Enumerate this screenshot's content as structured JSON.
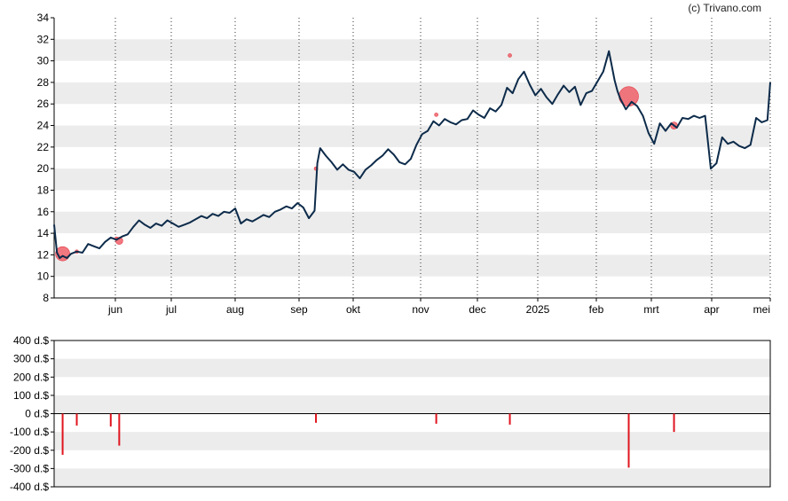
{
  "copyright": "(c) Trivano.com",
  "chart_data": [
    {
      "type": "line",
      "title": "",
      "xlabel": "",
      "ylabel": "",
      "ylim": [
        8,
        34
      ],
      "y_ticks": [
        "8",
        "10",
        "12",
        "14",
        "16",
        "18",
        "20",
        "22",
        "24",
        "26",
        "28",
        "30",
        "32",
        "34"
      ],
      "x_ticks": [
        "jun",
        "jul",
        "aug",
        "sep",
        "okt",
        "nov",
        "dec",
        "2025",
        "feb",
        "mrt",
        "apr",
        "mei"
      ],
      "grid": "alternating horizontal bands, dotted vertical lines at month starts",
      "line_color": "#0d2b4a",
      "series": [
        {
          "values": [
            [
              0.0,
              14.8
            ],
            [
              1.0,
              12.2
            ],
            [
              2.0,
              11.7
            ],
            [
              3.0,
              11.9
            ],
            [
              4.5,
              11.7
            ],
            [
              6.0,
              12.1
            ],
            [
              8.0,
              12.3
            ],
            [
              10.0,
              12.2
            ],
            [
              12.0,
              13.0
            ],
            [
              14.0,
              12.8
            ],
            [
              16.0,
              12.6
            ],
            [
              18.0,
              13.2
            ],
            [
              20.0,
              13.6
            ],
            [
              22.0,
              13.4
            ],
            [
              24.0,
              13.7
            ],
            [
              26.0,
              13.9
            ],
            [
              28.0,
              14.6
            ],
            [
              30.0,
              15.2
            ],
            [
              32.0,
              14.8
            ],
            [
              34.0,
              14.5
            ],
            [
              36.0,
              14.9
            ],
            [
              38.0,
              14.7
            ],
            [
              40.0,
              15.2
            ],
            [
              42.0,
              14.9
            ],
            [
              44.0,
              14.6
            ],
            [
              46.0,
              14.8
            ],
            [
              48.0,
              15.0
            ],
            [
              50.0,
              15.3
            ],
            [
              52.0,
              15.6
            ],
            [
              54.0,
              15.4
            ],
            [
              56.0,
              15.8
            ],
            [
              58.0,
              15.6
            ],
            [
              60.0,
              16.0
            ],
            [
              62.0,
              15.9
            ],
            [
              64.0,
              16.3
            ],
            [
              66.0,
              14.9
            ],
            [
              68.0,
              15.3
            ],
            [
              70.0,
              15.1
            ],
            [
              72.0,
              15.4
            ],
            [
              74.0,
              15.7
            ],
            [
              76.0,
              15.5
            ],
            [
              78.0,
              16.0
            ],
            [
              80.0,
              16.2
            ],
            [
              82.0,
              16.5
            ],
            [
              84.0,
              16.3
            ],
            [
              86.0,
              16.8
            ],
            [
              88.0,
              16.4
            ],
            [
              90.0,
              15.4
            ],
            [
              92.0,
              16.1
            ],
            [
              93.0,
              20.5
            ],
            [
              94.0,
              21.9
            ],
            [
              96.0,
              21.2
            ],
            [
              98.0,
              20.6
            ],
            [
              100.0,
              19.9
            ],
            [
              102.0,
              20.4
            ],
            [
              104.0,
              19.9
            ],
            [
              106.0,
              19.7
            ],
            [
              108.0,
              19.1
            ],
            [
              110.0,
              19.9
            ],
            [
              112.0,
              20.3
            ],
            [
              114.0,
              20.8
            ],
            [
              116.0,
              21.2
            ],
            [
              118.0,
              21.8
            ],
            [
              120.0,
              21.3
            ],
            [
              122.0,
              20.6
            ],
            [
              124.0,
              20.4
            ],
            [
              126.0,
              20.9
            ],
            [
              128.0,
              22.2
            ],
            [
              130.0,
              23.2
            ],
            [
              132.0,
              23.5
            ],
            [
              134.0,
              24.4
            ],
            [
              136.0,
              24.0
            ],
            [
              138.0,
              24.6
            ],
            [
              140.0,
              24.3
            ],
            [
              142.0,
              24.1
            ],
            [
              144.0,
              24.5
            ],
            [
              146.0,
              24.6
            ],
            [
              148.0,
              25.4
            ],
            [
              150.0,
              25.0
            ],
            [
              152.0,
              24.7
            ],
            [
              154.0,
              25.6
            ],
            [
              156.0,
              25.3
            ],
            [
              158.0,
              25.9
            ],
            [
              160.0,
              27.5
            ],
            [
              162.0,
              27.0
            ],
            [
              164.0,
              28.3
            ],
            [
              166.0,
              29.0
            ],
            [
              168.0,
              27.8
            ],
            [
              170.0,
              26.8
            ],
            [
              172.0,
              27.4
            ],
            [
              174.0,
              26.6
            ],
            [
              176.0,
              26.0
            ],
            [
              178.0,
              26.9
            ],
            [
              180.0,
              27.7
            ],
            [
              182.0,
              27.1
            ],
            [
              184.0,
              27.6
            ],
            [
              186.0,
              25.9
            ],
            [
              188.0,
              27.0
            ],
            [
              190.0,
              27.2
            ],
            [
              192.0,
              28.1
            ],
            [
              194.0,
              29.0
            ],
            [
              196.0,
              30.9
            ],
            [
              198.0,
              28.2
            ],
            [
              199.0,
              27.2
            ],
            [
              200.0,
              26.5
            ],
            [
              202.0,
              25.5
            ],
            [
              204.0,
              26.2
            ],
            [
              206.0,
              25.8
            ],
            [
              208.0,
              24.9
            ],
            [
              210.0,
              23.3
            ],
            [
              212.0,
              22.3
            ],
            [
              214.0,
              24.2
            ],
            [
              216.0,
              23.5
            ],
            [
              218.0,
              24.2
            ],
            [
              220.0,
              23.8
            ],
            [
              222.0,
              24.7
            ],
            [
              224.0,
              24.6
            ],
            [
              226.0,
              24.9
            ],
            [
              228.0,
              24.7
            ],
            [
              230.0,
              24.9
            ],
            [
              232.0,
              20.0
            ],
            [
              234.0,
              20.5
            ],
            [
              236.0,
              22.9
            ],
            [
              238.0,
              22.3
            ],
            [
              240.0,
              22.5
            ],
            [
              242.0,
              22.1
            ],
            [
              244.0,
              21.9
            ],
            [
              246.0,
              22.2
            ],
            [
              248.0,
              24.7
            ],
            [
              250.0,
              24.3
            ],
            [
              252.0,
              24.5
            ],
            [
              253.0,
              28.0
            ]
          ]
        }
      ],
      "markers": [
        {
          "x": 3.0,
          "y": 12.1,
          "size": 3
        },
        {
          "x": 8.0,
          "y": 12.3,
          "size": 1
        },
        {
          "x": 22.0,
          "y": 13.5,
          "size": 1
        },
        {
          "x": 23.0,
          "y": 13.3,
          "size": 2
        },
        {
          "x": 92.5,
          "y": 20.0,
          "size": 1
        },
        {
          "x": 135.0,
          "y": 25.0,
          "size": 1
        },
        {
          "x": 161.0,
          "y": 30.5,
          "size": 1
        },
        {
          "x": 203.0,
          "y": 26.7,
          "size": 4
        },
        {
          "x": 219.0,
          "y": 24.0,
          "size": 2
        }
      ],
      "marker_color": "#f0606a"
    },
    {
      "type": "bar",
      "title": "",
      "xlabel": "",
      "ylabel": "",
      "ylim": [
        -400,
        400
      ],
      "y_ticks": [
        "400 d.$",
        "300 d.$",
        "200 d.$",
        "100 d.$",
        "0 d.$",
        "-100 d.$",
        "-200 d.$",
        "-300 d.$",
        "-400 d.$"
      ],
      "bar_color": "#e0141e",
      "series": [
        {
          "values": [
            [
              3.0,
              -225
            ],
            [
              8.0,
              -65
            ],
            [
              20.0,
              -70
            ],
            [
              23.0,
              -175
            ],
            [
              92.5,
              -50
            ],
            [
              135.0,
              -55
            ],
            [
              161.0,
              -60
            ],
            [
              203.0,
              -295
            ],
            [
              219.0,
              -100
            ]
          ]
        }
      ]
    }
  ]
}
